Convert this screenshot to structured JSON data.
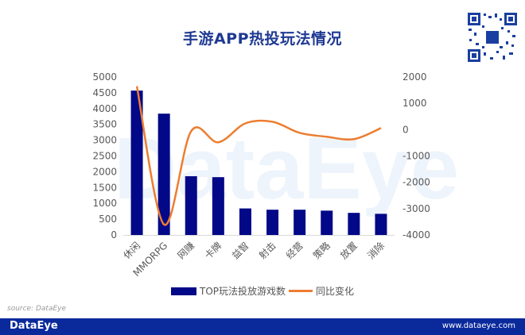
{
  "title": "手游APP热投玩法情况",
  "source": "source: DataEye",
  "footer": {
    "logo": "DataEye",
    "url": "www.dataeye.com"
  },
  "watermark": "DataEye",
  "legend": {
    "bar_label": "TOP玩法投放游戏数",
    "line_label": "同比变化"
  },
  "colors": {
    "bar": "#020887",
    "line": "#ed7d31",
    "title": "#1f3a93",
    "footer": "#0a2a9c"
  },
  "chart_data": {
    "type": "bar",
    "title": "手游APP热投玩法情况",
    "categories": [
      "休闲",
      "MMORPG",
      "网赚",
      "卡牌",
      "益智",
      "射击",
      "经营",
      "策略",
      "放置",
      "消除"
    ],
    "series": [
      {
        "name": "TOP玩法投放游戏数",
        "type": "bar",
        "axis": "left",
        "values": [
          4570,
          3840,
          1860,
          1830,
          840,
          800,
          800,
          770,
          700,
          670
        ]
      },
      {
        "name": "同比变化",
        "type": "line",
        "axis": "right",
        "smooth": true,
        "values": [
          1650,
          -3600,
          -60,
          -480,
          240,
          300,
          -120,
          -270,
          -360,
          60
        ]
      }
    ],
    "left_axis": {
      "ylim": [
        0,
        5000
      ],
      "ticks": [
        0,
        500,
        1000,
        1500,
        2000,
        2500,
        3000,
        3500,
        4000,
        4500,
        5000
      ]
    },
    "right_axis": {
      "ylim": [
        -4000,
        2000
      ],
      "ticks": [
        -4000,
        -3000,
        -2000,
        -1000,
        0,
        1000,
        2000
      ]
    },
    "xlabel": "",
    "ylabel": "",
    "grid": false,
    "legend_position": "bottom"
  }
}
